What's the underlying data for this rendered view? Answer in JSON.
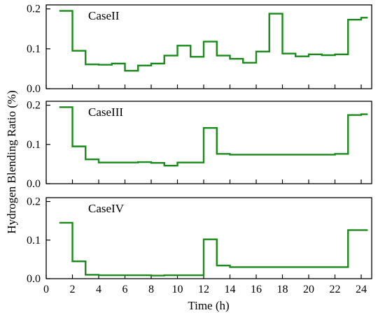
{
  "ylabel": "Hydrogen Blending Ratio (%)",
  "xlabel": "Time (h)",
  "x_ticks": [
    "0",
    "2",
    "4",
    "6",
    "8",
    "10",
    "12",
    "14",
    "16",
    "18",
    "20",
    "22",
    "24"
  ],
  "y_ticks": [
    "0.0",
    "0.1",
    "0.2"
  ],
  "colors": {
    "line": "#1a8a1a"
  },
  "chart_data": [
    {
      "type": "line",
      "step": "post",
      "title": "CaseII",
      "xlim": [
        0,
        24.8
      ],
      "ylim": [
        0,
        0.21
      ],
      "x": [
        1,
        2,
        3,
        4,
        5,
        6,
        7,
        8,
        9,
        10,
        11,
        12,
        13,
        14,
        15,
        16,
        17,
        18,
        19,
        20,
        21,
        22,
        23,
        24
      ],
      "values": [
        0.195,
        0.095,
        0.061,
        0.06,
        0.063,
        0.045,
        0.058,
        0.063,
        0.083,
        0.108,
        0.08,
        0.118,
        0.083,
        0.075,
        0.065,
        0.093,
        0.188,
        0.088,
        0.081,
        0.086,
        0.084,
        0.086,
        0.173,
        0.178
      ]
    },
    {
      "type": "line",
      "step": "post",
      "title": "CaseIII",
      "xlim": [
        0,
        24.8
      ],
      "ylim": [
        0,
        0.21
      ],
      "x": [
        1,
        2,
        3,
        4,
        5,
        6,
        7,
        8,
        9,
        10,
        11,
        12,
        13,
        14,
        15,
        16,
        17,
        18,
        19,
        20,
        21,
        22,
        23,
        24
      ],
      "values": [
        0.195,
        0.095,
        0.062,
        0.054,
        0.054,
        0.054,
        0.055,
        0.053,
        0.046,
        0.054,
        0.054,
        0.142,
        0.076,
        0.074,
        0.074,
        0.074,
        0.074,
        0.074,
        0.074,
        0.074,
        0.074,
        0.076,
        0.175,
        0.177
      ]
    },
    {
      "type": "line",
      "step": "post",
      "title": "CaseIV",
      "xlim": [
        0,
        24.8
      ],
      "ylim": [
        0,
        0.21
      ],
      "x": [
        1,
        2,
        3,
        4,
        5,
        6,
        7,
        8,
        9,
        10,
        11,
        12,
        13,
        14,
        15,
        16,
        17,
        18,
        19,
        20,
        21,
        22,
        23,
        24
      ],
      "values": [
        0.145,
        0.045,
        0.01,
        0.009,
        0.009,
        0.009,
        0.009,
        0.008,
        0.009,
        0.009,
        0.009,
        0.102,
        0.034,
        0.03,
        0.03,
        0.03,
        0.03,
        0.03,
        0.03,
        0.03,
        0.03,
        0.03,
        0.126,
        0.126
      ]
    }
  ]
}
